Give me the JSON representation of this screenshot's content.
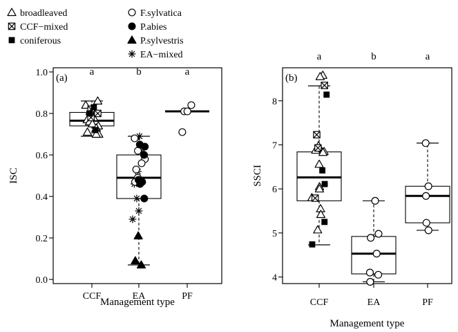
{
  "legend": [
    {
      "symbol": "triangle-open",
      "label": "broadleaved"
    },
    {
      "symbol": "crossed-square",
      "label": "CCF−mixed"
    },
    {
      "symbol": "square-filled",
      "label": "coniferous"
    },
    {
      "symbol": "circle-open",
      "label": "F.sylvatica"
    },
    {
      "symbol": "circle-filled",
      "label": "P.abies"
    },
    {
      "symbol": "triangle-filled",
      "label": "P.sylvestris"
    },
    {
      "symbol": "asterisk",
      "label": "EA−mixed"
    }
  ],
  "chart_data": [
    {
      "type": "boxplot",
      "panel_label": "(a)",
      "ylabel": "ISC",
      "xlabel": "Management type",
      "categories": [
        "CCF",
        "EA",
        "PF"
      ],
      "ylim": [
        -0.02,
        1.02
      ],
      "yticks": [
        0.0,
        0.2,
        0.4,
        0.6,
        0.8,
        1.0
      ],
      "ytick_labels": [
        "0.0",
        "0.2",
        "0.4",
        "0.6",
        "0.8",
        "1.0"
      ],
      "grid": false,
      "group_letters": [
        "a",
        "b",
        "a"
      ],
      "boxes": [
        {
          "category": "CCF",
          "whisker_low": 0.69,
          "q1": 0.74,
          "median": 0.765,
          "q3": 0.805,
          "whisker_high": 0.86
        },
        {
          "category": "EA",
          "whisker_low": 0.07,
          "q1": 0.39,
          "median": 0.49,
          "q3": 0.6,
          "whisker_high": 0.69
        },
        {
          "category": "PF",
          "whisker_low": 0.81,
          "q1": 0.81,
          "median": 0.81,
          "q3": 0.81,
          "whisker_high": 0.81
        }
      ],
      "points": [
        {
          "category": "CCF",
          "symbol": "triangle-open",
          "y": 0.86
        },
        {
          "category": "CCF",
          "symbol": "triangle-open",
          "y": 0.84
        },
        {
          "category": "CCF",
          "symbol": "triangle-open",
          "y": 0.82
        },
        {
          "category": "CCF",
          "symbol": "triangle-open",
          "y": 0.81
        },
        {
          "category": "CCF",
          "symbol": "triangle-open",
          "y": 0.79
        },
        {
          "category": "CCF",
          "symbol": "triangle-open",
          "y": 0.78
        },
        {
          "category": "CCF",
          "symbol": "triangle-open",
          "y": 0.77
        },
        {
          "category": "CCF",
          "symbol": "triangle-open",
          "y": 0.76
        },
        {
          "category": "CCF",
          "symbol": "triangle-open",
          "y": 0.75
        },
        {
          "category": "CCF",
          "symbol": "triangle-open",
          "y": 0.74
        },
        {
          "category": "CCF",
          "symbol": "triangle-open",
          "y": 0.73
        },
        {
          "category": "CCF",
          "symbol": "triangle-open",
          "y": 0.71
        },
        {
          "category": "CCF",
          "symbol": "triangle-open",
          "y": 0.7
        },
        {
          "category": "CCF",
          "symbol": "triangle-open",
          "y": 0.7
        },
        {
          "category": "CCF",
          "symbol": "crossed-square",
          "y": 0.82
        },
        {
          "category": "CCF",
          "symbol": "crossed-square",
          "y": 0.8
        },
        {
          "category": "CCF",
          "symbol": "crossed-square",
          "y": 0.78
        },
        {
          "category": "CCF",
          "symbol": "square-filled",
          "y": 0.83
        },
        {
          "category": "CCF",
          "symbol": "square-filled",
          "y": 0.8
        },
        {
          "category": "CCF",
          "symbol": "square-filled",
          "y": 0.72
        },
        {
          "category": "EA",
          "symbol": "asterisk",
          "y": 0.69
        },
        {
          "category": "EA",
          "symbol": "asterisk",
          "y": 0.62
        },
        {
          "category": "EA",
          "symbol": "asterisk",
          "y": 0.52
        },
        {
          "category": "EA",
          "symbol": "asterisk",
          "y": 0.46
        },
        {
          "category": "EA",
          "symbol": "asterisk",
          "y": 0.39
        },
        {
          "category": "EA",
          "symbol": "asterisk",
          "y": 0.33
        },
        {
          "category": "EA",
          "symbol": "asterisk",
          "y": 0.29
        },
        {
          "category": "EA",
          "symbol": "circle-open",
          "y": 0.68
        },
        {
          "category": "EA",
          "symbol": "circle-open",
          "y": 0.62
        },
        {
          "category": "EA",
          "symbol": "circle-open",
          "y": 0.58
        },
        {
          "category": "EA",
          "symbol": "circle-open",
          "y": 0.56
        },
        {
          "category": "EA",
          "symbol": "circle-open",
          "y": 0.53
        },
        {
          "category": "EA",
          "symbol": "circle-open",
          "y": 0.49
        },
        {
          "category": "EA",
          "symbol": "circle-open",
          "y": 0.47
        },
        {
          "category": "EA",
          "symbol": "circle-filled",
          "y": 0.65
        },
        {
          "category": "EA",
          "symbol": "circle-filled",
          "y": 0.64
        },
        {
          "category": "EA",
          "symbol": "circle-filled",
          "y": 0.6
        },
        {
          "category": "EA",
          "symbol": "circle-filled",
          "y": 0.48
        },
        {
          "category": "EA",
          "symbol": "circle-filled",
          "y": 0.47
        },
        {
          "category": "EA",
          "symbol": "circle-filled",
          "y": 0.46
        },
        {
          "category": "EA",
          "symbol": "circle-filled",
          "y": 0.39
        },
        {
          "category": "EA",
          "symbol": "triangle-filled",
          "y": 0.21
        },
        {
          "category": "EA",
          "symbol": "triangle-filled",
          "y": 0.09
        },
        {
          "category": "EA",
          "symbol": "triangle-filled",
          "y": 0.07
        },
        {
          "category": "PF",
          "symbol": "circle-open",
          "y": 0.84
        },
        {
          "category": "PF",
          "symbol": "circle-open",
          "y": 0.81
        },
        {
          "category": "PF",
          "symbol": "circle-open",
          "y": 0.81
        },
        {
          "category": "PF",
          "symbol": "circle-open",
          "y": 0.71
        }
      ]
    },
    {
      "type": "boxplot",
      "panel_label": "(b)",
      "ylabel": "SSCI",
      "xlabel": "Management type",
      "categories": [
        "CCF",
        "EA",
        "PF"
      ],
      "ylim": [
        3.85,
        8.75
      ],
      "yticks": [
        4,
        5,
        6,
        7,
        8
      ],
      "ytick_labels": [
        "4",
        "5",
        "6",
        "7",
        "8"
      ],
      "grid": false,
      "group_letters": [
        "a",
        "b",
        "a"
      ],
      "boxes": [
        {
          "category": "CCF",
          "whisker_low": 4.73,
          "q1": 5.73,
          "median": 6.26,
          "q3": 6.84,
          "whisker_high": 8.34
        },
        {
          "category": "EA",
          "whisker_low": 3.89,
          "q1": 4.07,
          "median": 4.53,
          "q3": 4.92,
          "whisker_high": 5.73
        },
        {
          "category": "PF",
          "whisker_low": 5.06,
          "q1": 5.23,
          "median": 5.84,
          "q3": 6.06,
          "whisker_high": 7.04
        }
      ],
      "points": [
        {
          "category": "CCF",
          "symbol": "triangle-open",
          "y": 8.58
        },
        {
          "category": "CCF",
          "symbol": "triangle-open",
          "y": 8.55
        },
        {
          "category": "CCF",
          "symbol": "triangle-open",
          "y": 6.98
        },
        {
          "category": "CCF",
          "symbol": "triangle-open",
          "y": 6.88
        },
        {
          "category": "CCF",
          "symbol": "triangle-open",
          "y": 6.85
        },
        {
          "category": "CCF",
          "symbol": "triangle-open",
          "y": 6.83
        },
        {
          "category": "CCF",
          "symbol": "triangle-open",
          "y": 6.56
        },
        {
          "category": "CCF",
          "symbol": "triangle-open",
          "y": 6.05
        },
        {
          "category": "CCF",
          "symbol": "triangle-open",
          "y": 6.0
        },
        {
          "category": "CCF",
          "symbol": "triangle-open",
          "y": 5.8
        },
        {
          "category": "CCF",
          "symbol": "triangle-open",
          "y": 5.55
        },
        {
          "category": "CCF",
          "symbol": "triangle-open",
          "y": 5.42
        },
        {
          "category": "CCF",
          "symbol": "triangle-open",
          "y": 5.07
        },
        {
          "category": "CCF",
          "symbol": "crossed-square",
          "y": 8.35
        },
        {
          "category": "CCF",
          "symbol": "crossed-square",
          "y": 7.23
        },
        {
          "category": "CCF",
          "symbol": "crossed-square",
          "y": 6.93
        },
        {
          "category": "CCF",
          "symbol": "crossed-square",
          "y": 5.79
        },
        {
          "category": "CCF",
          "symbol": "square-filled",
          "y": 8.14
        },
        {
          "category": "CCF",
          "symbol": "square-filled",
          "y": 6.42
        },
        {
          "category": "CCF",
          "symbol": "square-filled",
          "y": 6.11
        },
        {
          "category": "CCF",
          "symbol": "square-filled",
          "y": 5.25
        },
        {
          "category": "CCF",
          "symbol": "square-filled",
          "y": 4.74
        },
        {
          "category": "EA",
          "symbol": "circle-open",
          "y": 5.73
        },
        {
          "category": "EA",
          "symbol": "circle-open",
          "y": 4.98
        },
        {
          "category": "EA",
          "symbol": "circle-open",
          "y": 4.89
        },
        {
          "category": "EA",
          "symbol": "circle-open",
          "y": 4.53
        },
        {
          "category": "EA",
          "symbol": "circle-open",
          "y": 4.1
        },
        {
          "category": "EA",
          "symbol": "circle-open",
          "y": 4.05
        },
        {
          "category": "EA",
          "symbol": "circle-open",
          "y": 3.89
        },
        {
          "category": "PF",
          "symbol": "circle-open",
          "y": 7.04
        },
        {
          "category": "PF",
          "symbol": "circle-open",
          "y": 6.06
        },
        {
          "category": "PF",
          "symbol": "circle-open",
          "y": 5.84
        },
        {
          "category": "PF",
          "symbol": "circle-open",
          "y": 5.23
        },
        {
          "category": "PF",
          "symbol": "circle-open",
          "y": 5.06
        }
      ]
    }
  ]
}
